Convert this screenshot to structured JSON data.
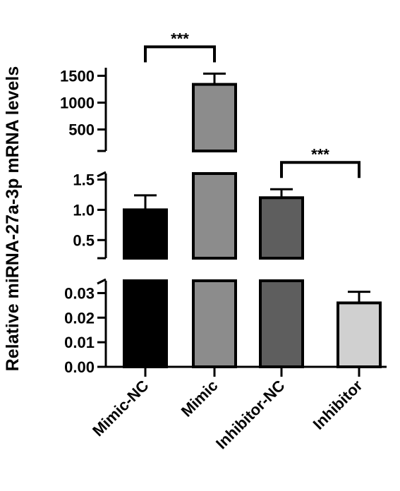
{
  "chart_data": {
    "type": "bar",
    "title": "",
    "xlabel": "",
    "ylabel": "Relative miRNA-27a-3p mRNA  levels",
    "categories": [
      "Mimic-NC",
      "Mimic",
      "Inhibitor-NC",
      "Inhibitor"
    ],
    "values": [
      1.0,
      1340,
      1.2,
      0.026
    ],
    "errors": [
      0.24,
      200,
      0.14,
      0.0045
    ],
    "bar_colors": [
      "#000000",
      "#8c8c8c",
      "#5e5e5e",
      "#d0d0d0"
    ],
    "y_axis_segments": [
      {
        "range": [
          0,
          0.035
        ],
        "ticks": [
          0.0,
          0.01,
          0.02,
          0.03
        ],
        "tick_labels": [
          "0.00",
          "0.01",
          "0.02",
          "0.03"
        ]
      },
      {
        "range": [
          0.2,
          1.6
        ],
        "ticks": [
          0.5,
          1.0,
          1.5
        ],
        "tick_labels": [
          "0.5",
          "1.0",
          "1.5"
        ]
      },
      {
        "range": [
          100,
          1650
        ],
        "ticks": [
          500,
          1000,
          1500
        ],
        "tick_labels": [
          "500",
          "1000",
          "1500"
        ]
      }
    ],
    "axis_break": true,
    "significance": [
      {
        "from": "Mimic-NC",
        "to": "Mimic",
        "label": "***"
      },
      {
        "from": "Inhibitor-NC",
        "to": "Inhibitor",
        "label": "***"
      }
    ],
    "grid": false,
    "legend": "none"
  }
}
